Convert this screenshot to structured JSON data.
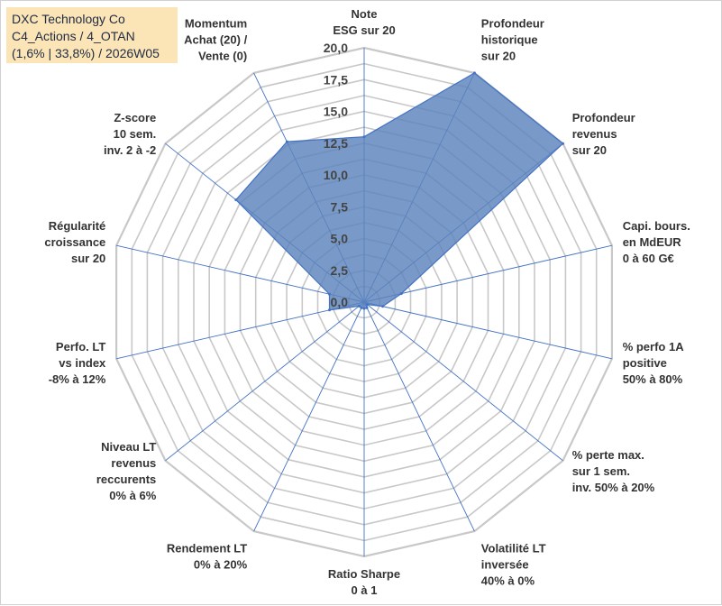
{
  "header": {
    "line1": "DXC Technology Co",
    "line2": "C4_Actions / 4_OTAN",
    "line3": "(1,6% | 33,8%) / 2026W05"
  },
  "colors": {
    "fill": "#5b84bc",
    "fill_stroke": "#4472c4",
    "grid": "#c8c8c8",
    "spoke": "#4472c4",
    "title_bg": "#fbe5b6"
  },
  "chart_data": {
    "type": "radar",
    "title": "DXC Technology Co",
    "range": [
      0,
      20
    ],
    "tick_labels": [
      "0,0",
      "2,5",
      "5,0",
      "7,5",
      "10,0",
      "12,5",
      "15,0",
      "17,5",
      "20,0"
    ],
    "axes": [
      {
        "lines": [
          "Note",
          "ESG sur 20"
        ],
        "value": 13.0
      },
      {
        "lines": [
          "Profondeur",
          "historique",
          "sur 20"
        ],
        "value": 20.0
      },
      {
        "lines": [
          "Profondeur",
          "revenus",
          "sur 20"
        ],
        "value": 20.0
      },
      {
        "lines": [
          "Capi. bours.",
          "en MdEUR",
          "0 à 60 G€"
        ],
        "value": 3.0
      },
      {
        "lines": [
          "% perfo 1A",
          "positive",
          "50% à 80%"
        ],
        "value": 1.5
      },
      {
        "lines": [
          "% perte max.",
          "sur 1 sem.",
          "inv. 50% à 20%"
        ],
        "value": 0.3
      },
      {
        "lines": [
          "Volatilité LT",
          "inversée",
          "40% à 0%"
        ],
        "value": 0.5
      },
      {
        "lines": [
          "Ratio Sharpe",
          "0 à 1"
        ],
        "value": 0.5
      },
      {
        "lines": [
          "Rendement LT",
          "0% à 20%"
        ],
        "value": 0.5
      },
      {
        "lines": [
          "Niveau LT",
          "revenus",
          "reccurents",
          "0% à 6%"
        ],
        "value": 0.5
      },
      {
        "lines": [
          "Perfo. LT",
          "vs index",
          "-8% à 12%"
        ],
        "value": 2.8
      },
      {
        "lines": [
          "Régularité",
          "croissance",
          "sur 20"
        ],
        "value": 2.8
      },
      {
        "lines": [
          "Z-score",
          "10 sem.",
          "inv. 2 à -2"
        ],
        "value": 12.9
      },
      {
        "lines": [
          "Momentum",
          "Achat (20) /",
          "Vente (0)"
        ],
        "value": 14.0
      }
    ]
  }
}
